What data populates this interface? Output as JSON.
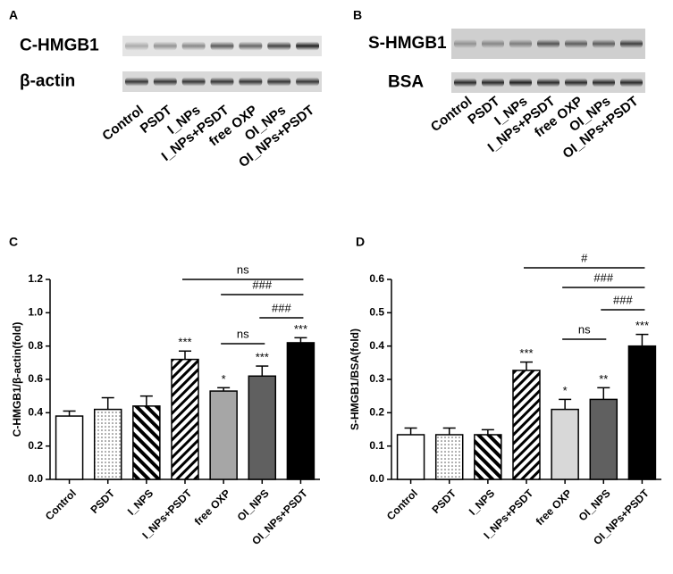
{
  "blots": [
    {
      "panel": "A",
      "rows": [
        "C-HMGB1",
        "β-actin"
      ],
      "lanes": [
        "Control",
        "PSDT",
        "I_NPs",
        "I_NPs+PSDT",
        "free OXP",
        "OI_NPs",
        "OI_NPs+PSDT"
      ]
    },
    {
      "panel": "B",
      "rows": [
        "S-HMGB1",
        "BSA"
      ],
      "lanes": [
        "Control",
        "PSDT",
        "I_NPs",
        "I_NPs+PSDT",
        "free OXP",
        "OI_NPs",
        "OI_NPs+PSDT"
      ]
    }
  ],
  "chart_data": [
    {
      "type": "bar",
      "panel": "C",
      "y_label": "C-HMGB1/β-actin(fold)",
      "categories": [
        "Control",
        "PSDT",
        "I_NPS",
        "I_NPs+PSDT",
        "free OXP",
        "OI_NPS",
        "OI_NPs+PSDT"
      ],
      "values": [
        0.38,
        0.42,
        0.44,
        0.72,
        0.53,
        0.62,
        0.82
      ],
      "errors": [
        0.03,
        0.07,
        0.06,
        0.05,
        0.02,
        0.06,
        0.03
      ],
      "bar_styles": [
        "#ffffff",
        "dots",
        "backslash",
        "slash",
        "#a6a6a6",
        "#606060",
        "#000000"
      ],
      "value_annotations": [
        null,
        null,
        null,
        "***",
        "*",
        "***",
        "***"
      ],
      "brackets": [
        "ns",
        "###",
        "###",
        "ns"
      ],
      "ylim": [
        0,
        1.2
      ],
      "yticks": [
        {
          "value": 0,
          "label": "0.0"
        },
        0.2,
        0.4,
        0.6,
        0.8,
        {
          "value": 1,
          "label": "1.0"
        },
        1.2
      ]
    },
    {
      "type": "bar",
      "panel": "D",
      "y_label": "S-HMGB1/BSA(fold)",
      "categories": [
        "Control",
        "PSDT",
        "I_NPS",
        "I_NPs+PSDT",
        "free OXP",
        "OI_NPS",
        "OI_NPs+PSDT"
      ],
      "values": [
        0.134,
        0.134,
        0.134,
        0.327,
        0.21,
        0.24,
        0.4
      ],
      "errors": [
        0.02,
        0.02,
        0.015,
        0.025,
        0.03,
        0.035,
        0.035
      ],
      "bar_styles": [
        "#ffffff",
        "dots",
        "backslash",
        "slash",
        "#d8d8d8",
        "#606060",
        "#000000"
      ],
      "value_annotations": [
        null,
        null,
        null,
        "***",
        "*",
        "**",
        "***"
      ],
      "brackets": [
        "#",
        "###",
        "###",
        "ns"
      ],
      "ylim": [
        0,
        0.6
      ],
      "yticks": [
        {
          "value": 0,
          "label": "0.0"
        },
        0.1,
        0.2,
        0.3,
        0.4,
        0.5,
        0.6
      ]
    }
  ]
}
